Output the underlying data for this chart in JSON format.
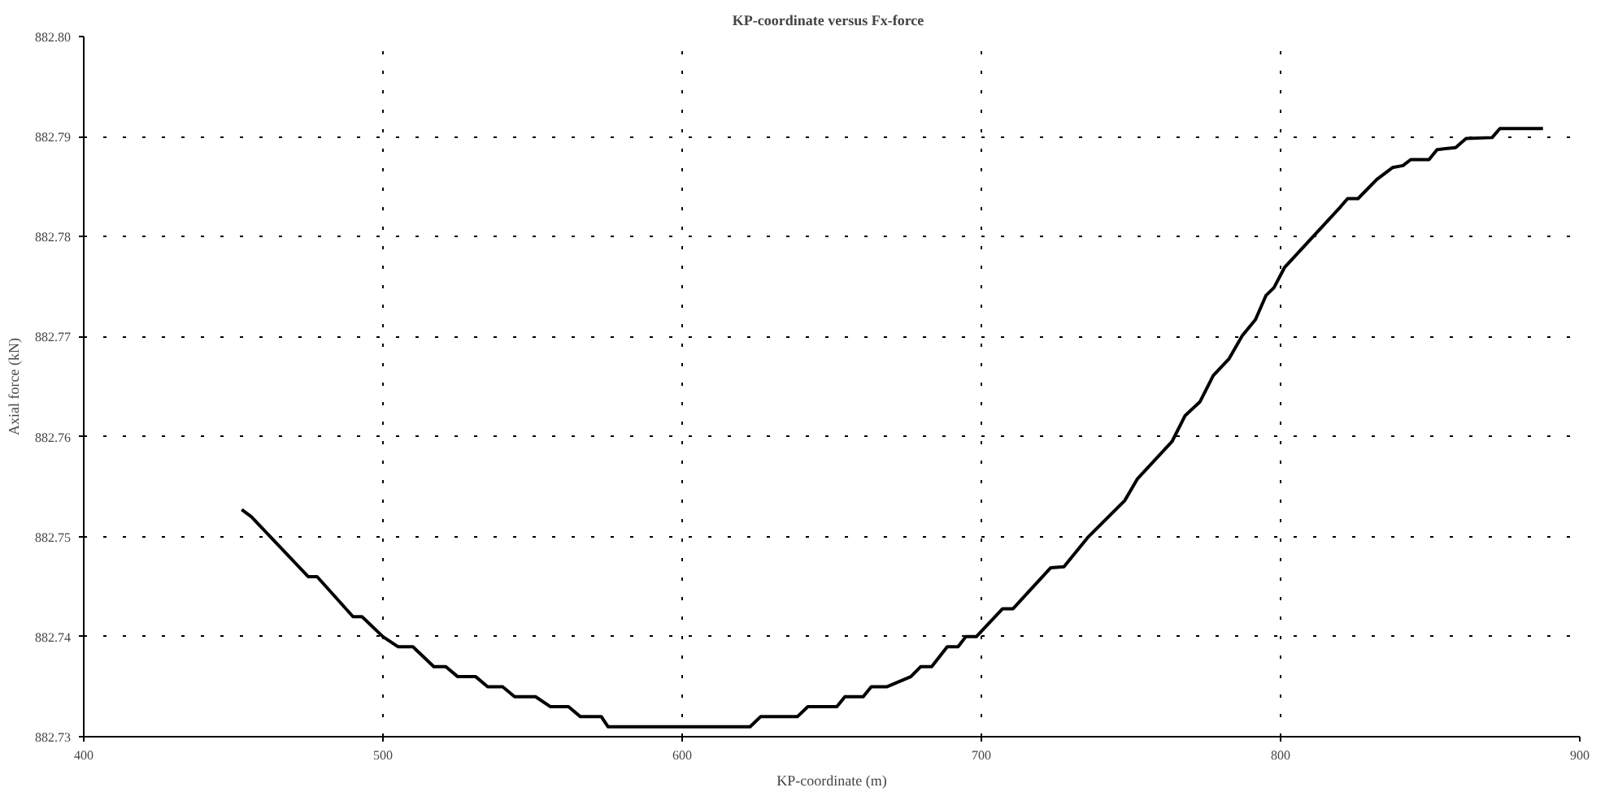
{
  "chart_data": {
    "type": "line",
    "title": "KP-coordinate  versus  Fx-force",
    "xlabel": "KP-coordinate (m)",
    "ylabel": "Axial force (kN)",
    "xlim": [
      400,
      900
    ],
    "ylim": [
      882.73,
      882.8
    ],
    "xticks": [
      400,
      500,
      600,
      700,
      800,
      900
    ],
    "yticks": [
      {
        "value": 882.73,
        "label": "882.73"
      },
      {
        "value": 882.74,
        "label": "882.74"
      },
      {
        "value": 882.75,
        "label": "882.75"
      },
      {
        "value": 882.76,
        "label": "882.76"
      },
      {
        "value": 882.77,
        "label": "882.77"
      },
      {
        "value": 882.78,
        "label": "882.78"
      },
      {
        "value": 882.79,
        "label": "882.79"
      },
      {
        "value": 882.8,
        "label": "882.80"
      }
    ],
    "grid": true,
    "line_style": "solid",
    "series": [
      {
        "color": "#000000",
        "x": [
          452.8,
          456,
          475,
          478,
          490,
          493,
          500,
          505,
          510,
          517,
          521,
          525,
          531,
          535,
          540,
          544,
          551,
          556,
          562,
          566,
          573,
          575.2,
          622.7,
          626.2,
          638.5,
          642,
          651.7,
          654.4,
          660.5,
          663.2,
          668.5,
          676.4,
          679.7,
          683.4,
          688.6,
          692.2,
          694.8,
          698.3,
          707.1,
          710.6,
          723.2,
          727.6,
          735.5,
          747.9,
          752.2,
          763.7,
          768.1,
          773.1,
          777.5,
          782.8,
          787.2,
          791.6,
          795.1,
          797.8,
          801.3,
          819.8,
          822.4,
          825.9,
          832.1,
          837.4,
          840.9,
          843.5,
          849.6,
          852.3,
          858.5,
          862,
          870.7,
          873.3,
          887.7
        ],
        "values": [
          882.7527,
          882.752,
          882.746,
          882.746,
          882.742,
          882.742,
          882.74,
          882.739,
          882.739,
          882.737,
          882.737,
          882.736,
          882.736,
          882.735,
          882.735,
          882.734,
          882.734,
          882.733,
          882.733,
          882.732,
          882.732,
          882.731,
          882.731,
          882.732,
          882.732,
          882.733,
          882.733,
          882.734,
          882.734,
          882.735,
          882.735,
          882.736,
          882.737,
          882.737,
          882.739,
          882.739,
          882.74,
          882.74,
          882.7428,
          882.7428,
          882.7469,
          882.747,
          882.7499,
          882.7536,
          882.7558,
          882.7595,
          882.7621,
          882.7635,
          882.7661,
          882.7678,
          882.7701,
          882.7717,
          882.7741,
          882.7749,
          882.7769,
          882.7829,
          882.7838,
          882.7838,
          882.7857,
          882.7869,
          882.7871,
          882.7877,
          882.7877,
          882.7887,
          882.7889,
          882.7898,
          882.7899,
          882.7908,
          882.7908
        ]
      }
    ]
  }
}
